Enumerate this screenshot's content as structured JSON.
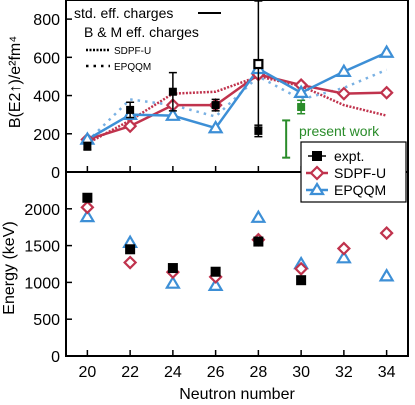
{
  "colors": {
    "expt": "#000000",
    "sdpfu": "#c0334d",
    "epqqm": "#3d8fd6",
    "epqqm_dashed": "#7ab1e3",
    "present": "#2a8c2a",
    "frame": "#000000"
  },
  "chart_data": [
    {
      "type": "scatter",
      "panel": "upper",
      "ylabel": "B(E2↑)/e²fm⁴",
      "xlabel": "",
      "xlim": [
        19,
        35
      ],
      "ylim": [
        0,
        900
      ],
      "ytick_labels": [
        "0",
        "200",
        "400",
        "600",
        "800"
      ],
      "yticks": [
        0,
        200,
        400,
        600,
        800
      ],
      "xticks": [
        20,
        22,
        24,
        26,
        28,
        30,
        32,
        34
      ],
      "legend_top": {
        "std": "std. eff. charges",
        "bm": "B & M eff. charges",
        "sdpfu": "SDPF-U",
        "epqqm": "EPQQM"
      },
      "legend_markers": {
        "expt": "expt.",
        "sdpfu": "SDPF-U",
        "epqqm": "EPQQM"
      },
      "annotation": "present work",
      "series": [
        {
          "name": "expt.",
          "style": "square-errorbar",
          "x": [
            20,
            22,
            24,
            26,
            28,
            28,
            30
          ],
          "y": [
            135,
            325,
            420,
            350,
            215,
            565,
            340
          ],
          "yerr": [
            20,
            40,
            100,
            30,
            30,
            330,
            35
          ],
          "filled": [
            true,
            true,
            true,
            true,
            true,
            false,
            true
          ],
          "present_work_index": 6
        },
        {
          "name": "SDPF-U",
          "style": "solid-diamond-line",
          "x": [
            20,
            22,
            24,
            26,
            28,
            30,
            32,
            34
          ],
          "y": [
            170,
            240,
            350,
            350,
            510,
            455,
            410,
            415
          ]
        },
        {
          "name": "EPQQM",
          "style": "solid-triangle-line",
          "x": [
            20,
            22,
            24,
            26,
            28,
            30,
            32,
            34
          ],
          "y": [
            170,
            300,
            295,
            230,
            540,
            415,
            525,
            625
          ]
        },
        {
          "name": "SDPF-U",
          "style": "dotted-line",
          "effective_charges": "B & M",
          "x": [
            20,
            22,
            24,
            26,
            28,
            30,
            32,
            34
          ],
          "y": [
            150,
            270,
            410,
            420,
            500,
            450,
            350,
            295
          ]
        },
        {
          "name": "EPQQM",
          "style": "dotted-line",
          "effective_charges": "B & M",
          "x": [
            20,
            22,
            24,
            26,
            28,
            30,
            32,
            34
          ],
          "y": [
            160,
            380,
            350,
            290,
            500,
            380,
            440,
            535
          ]
        },
        {
          "name": "present work",
          "style": "green-bracket",
          "x": [
            29.3
          ],
          "y": [
            270
          ],
          "ymin": 75,
          "ymax": 270
        }
      ]
    },
    {
      "type": "scatter",
      "panel": "lower",
      "ylabel": "Energy (keV)",
      "xlabel": "Neutron number",
      "xlim": [
        19,
        35
      ],
      "ylim": [
        0,
        2500
      ],
      "ytick_labels": [
        "0",
        "500",
        "1000",
        "1500",
        "2000"
      ],
      "yticks": [
        0,
        500,
        1000,
        1500,
        2000
      ],
      "xtick_labels": [
        "20",
        "22",
        "24",
        "26",
        "28",
        "30",
        "32",
        "34"
      ],
      "xticks": [
        20,
        22,
        24,
        26,
        28,
        30,
        32,
        34
      ],
      "series": [
        {
          "name": "expt.",
          "marker": "square",
          "x": [
            20,
            22,
            24,
            26,
            28,
            30
          ],
          "y": [
            2150,
            1450,
            1195,
            1145,
            1555,
            1030
          ]
        },
        {
          "name": "SDPF-U",
          "marker": "diamond",
          "x": [
            20,
            22,
            24,
            26,
            28,
            30,
            32,
            34
          ],
          "y": [
            2020,
            1270,
            1140,
            1075,
            1580,
            1185,
            1460,
            1670
          ]
        },
        {
          "name": "EPQQM",
          "marker": "triangle",
          "x": [
            20,
            22,
            24,
            26,
            28,
            30,
            32,
            34
          ],
          "y": [
            1890,
            1540,
            985,
            955,
            1880,
            1250,
            1330,
            1085
          ]
        }
      ]
    }
  ]
}
